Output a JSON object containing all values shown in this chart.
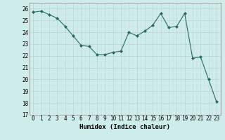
{
  "x": [
    0,
    1,
    2,
    3,
    4,
    5,
    6,
    7,
    8,
    9,
    10,
    11,
    12,
    13,
    14,
    15,
    16,
    17,
    18,
    19,
    20,
    21,
    22,
    23
  ],
  "y": [
    25.7,
    25.8,
    25.5,
    25.2,
    24.5,
    23.7,
    22.9,
    22.8,
    22.1,
    22.1,
    22.3,
    22.4,
    24.0,
    23.7,
    24.1,
    24.6,
    25.6,
    24.4,
    24.5,
    25.6,
    21.8,
    21.9,
    20.0,
    18.1
  ],
  "xlabel": "Humidex (Indice chaleur)",
  "ylim": [
    17,
    26.5
  ],
  "xlim": [
    -0.5,
    23.5
  ],
  "yticks": [
    17,
    18,
    19,
    20,
    21,
    22,
    23,
    24,
    25,
    26
  ],
  "xticks": [
    0,
    1,
    2,
    3,
    4,
    5,
    6,
    7,
    8,
    9,
    10,
    11,
    12,
    13,
    14,
    15,
    16,
    17,
    18,
    19,
    20,
    21,
    22,
    23
  ],
  "line_color": "#2a6b5e",
  "bg_color": "#ceecea",
  "grid_major_color": "#c0d8d4",
  "grid_minor_color": "#d8ecea"
}
